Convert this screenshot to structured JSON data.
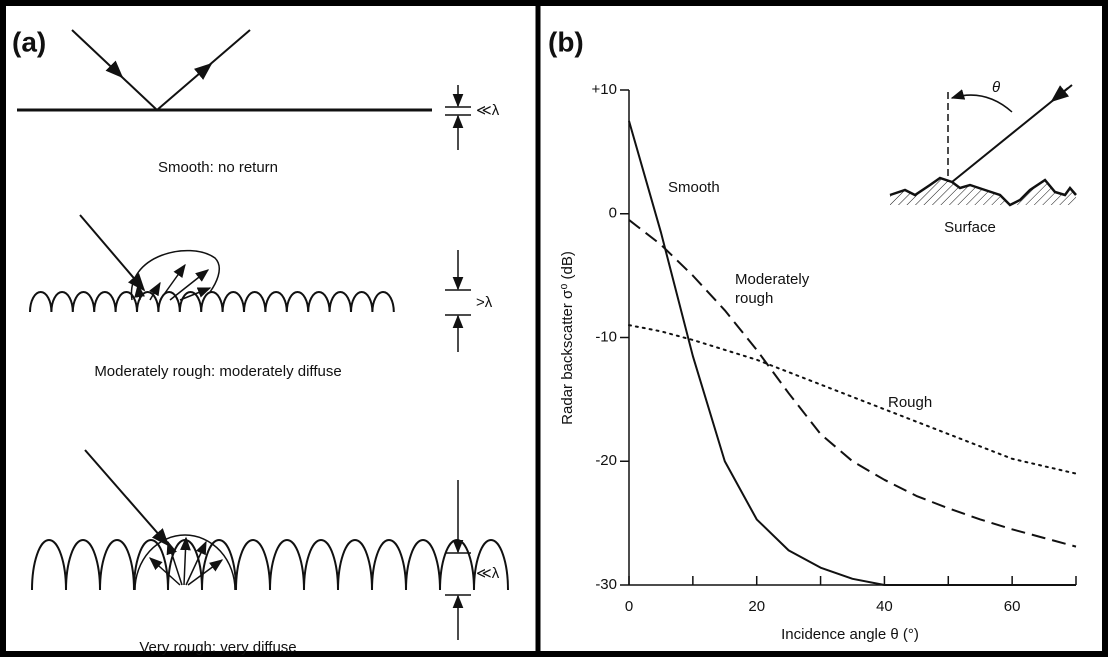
{
  "panel_a": {
    "label": "(a)",
    "captions": [
      "Smooth:  no return",
      "Moderately rough:  moderately diffuse",
      "Very rough:  very diffuse"
    ],
    "height_labels": [
      "≪λ",
      ">λ",
      "≪λ"
    ]
  },
  "chart_data": {
    "type": "line",
    "panel_label": "(b)",
    "x_label": "Incidence angle θ (°)",
    "y_label": "Radar backscatter σ⁰ (dB)",
    "x": [
      0,
      5,
      10,
      15,
      20,
      25,
      30,
      35,
      40,
      45,
      50,
      55,
      60,
      65,
      70
    ],
    "series": [
      {
        "name": "Smooth",
        "color": "#111111",
        "dash": "solid",
        "values": [
          7.5,
          -1.5,
          -11.5,
          -20,
          -24.7,
          -27.2,
          -28.6,
          -29.5,
          -30,
          -30,
          -30,
          -30,
          -30,
          -30,
          -30
        ]
      },
      {
        "name": "Moderately rough",
        "color": "#111111",
        "dash": "dashed",
        "values": [
          -0.5,
          -2.5,
          -5,
          -7.8,
          -11,
          -14.5,
          -17.8,
          -20,
          -21.5,
          -22.8,
          -23.8,
          -24.7,
          -25.5,
          -26.2,
          -26.9
        ]
      },
      {
        "name": "Rough",
        "color": "#111111",
        "dash": "dotted",
        "values": [
          -9,
          -9.5,
          -10.2,
          -11,
          -11.8,
          -12.8,
          -13.8,
          -14.8,
          -15.8,
          -16.8,
          -17.8,
          -18.8,
          -19.8,
          -20.4,
          -21
        ]
      }
    ],
    "xlim": [
      0,
      70
    ],
    "ylim": [
      -30,
      10
    ],
    "xticks": [
      0,
      20,
      40,
      60
    ],
    "xminor_ticks": [
      10,
      30,
      50,
      70
    ],
    "yticks": [
      -30,
      -20,
      -10,
      0,
      {
        "value": 10,
        "label": "+10"
      }
    ],
    "annotations": [
      "θ",
      "Surface"
    ]
  }
}
